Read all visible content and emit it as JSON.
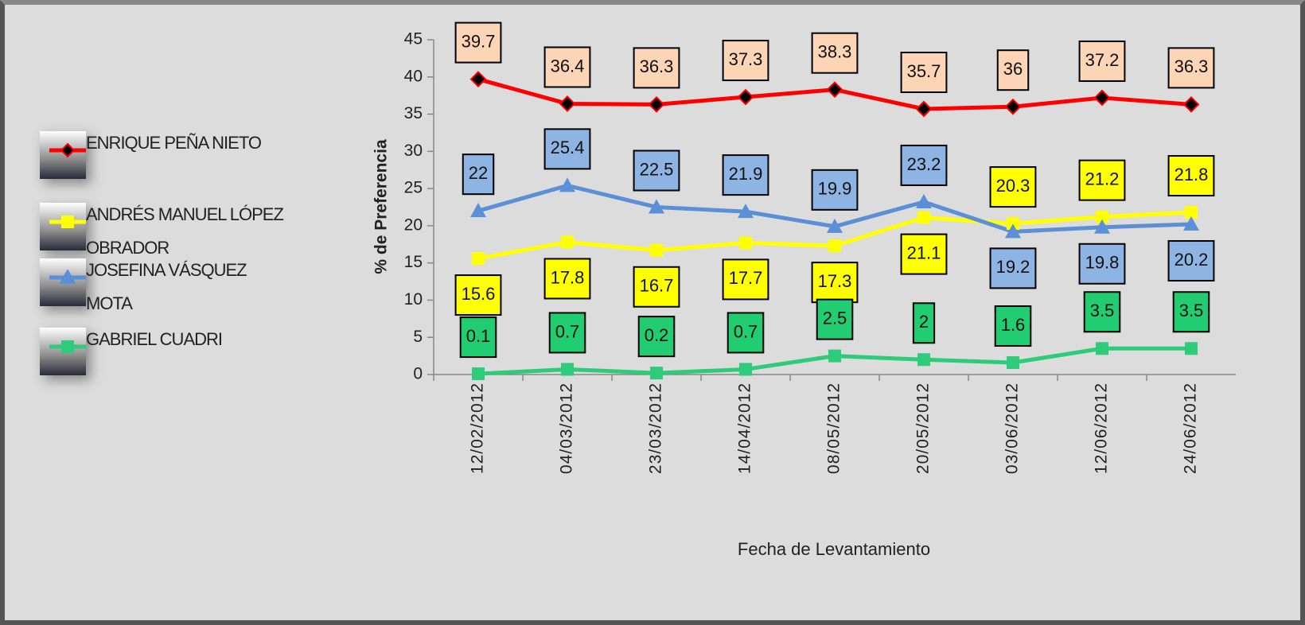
{
  "chart_data": {
    "type": "line",
    "x_label": "Fecha de Levantamiento",
    "y_label": "% de Preferencia",
    "categories": [
      "12/02/2012",
      "04/03/2012",
      "23/03/2012",
      "14/04/2012",
      "08/05/2012",
      "20/05/2012",
      "03/06/2012",
      "12/06/2012",
      "24/06/2012"
    ],
    "series": [
      {
        "name": "ENRIQUE PEÑA NIETO",
        "color": "#ff0000",
        "marker": "diamond",
        "label_color": "#fbd5b5",
        "values": [
          39.7,
          36.4,
          36.3,
          37.3,
          38.3,
          35.7,
          36,
          37.2,
          36.3
        ]
      },
      {
        "name": "ANDRÉS MANUEL LÓPEZ OBRADOR",
        "color": "#ffff00",
        "marker": "square",
        "label_color": "#ffff00",
        "values": [
          15.6,
          17.8,
          16.7,
          17.7,
          17.3,
          21.1,
          20.3,
          21.2,
          21.8
        ]
      },
      {
        "name": "JOSEFINA VÁSQUEZ MOTA",
        "color": "#5b8fd6",
        "marker": "triangle",
        "label_color": "#8db4e2",
        "values": [
          22,
          25.4,
          22.5,
          21.9,
          19.9,
          23.2,
          19.2,
          19.8,
          20.2
        ]
      },
      {
        "name": "GABRIEL CUADRI",
        "color": "#2ecc7a",
        "marker": "square",
        "label_color": "#22cc70",
        "values": [
          0.1,
          0.7,
          0.2,
          0.7,
          2.5,
          2,
          1.6,
          3.5,
          3.5
        ]
      }
    ],
    "ylim": [
      0,
      45
    ],
    "yticks": [
      0,
      5,
      10,
      15,
      20,
      25,
      30,
      35,
      40,
      45
    ]
  }
}
